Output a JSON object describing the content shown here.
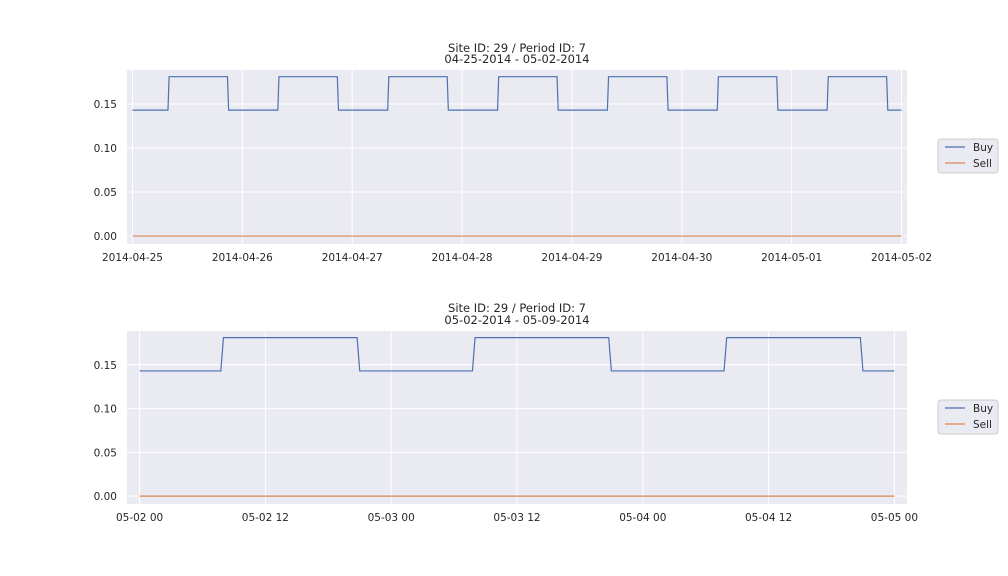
{
  "chart_data": [
    {
      "type": "line",
      "title": "Site ID: 29 / Period ID: 7",
      "subtitle": "04-25-2014 - 05-02-2014",
      "xlabel": "",
      "ylabel": "",
      "x_unit": "days",
      "xlim": [
        "2014-04-24 22:48",
        "2014-05-02 01:12"
      ],
      "ylim": [
        -0.009,
        0.1886
      ],
      "xticks": [
        {
          "label": "2014-04-25",
          "x": "2014-04-25 00:00"
        },
        {
          "label": "2014-04-26",
          "x": "2014-04-26 00:00"
        },
        {
          "label": "2014-04-27",
          "x": "2014-04-27 00:00"
        },
        {
          "label": "2014-04-28",
          "x": "2014-04-28 00:00"
        },
        {
          "label": "2014-04-29",
          "x": "2014-04-29 00:00"
        },
        {
          "label": "2014-04-30",
          "x": "2014-04-30 00:00"
        },
        {
          "label": "2014-05-01",
          "x": "2014-05-01 00:00"
        },
        {
          "label": "2014-05-02",
          "x": "2014-05-02 00:00"
        }
      ],
      "yticks": [
        {
          "label": "0.00",
          "y": 0.0
        },
        {
          "label": "0.05",
          "y": 0.05
        },
        {
          "label": "0.10",
          "y": 0.1
        },
        {
          "label": "0.15",
          "y": 0.15
        }
      ],
      "grid": true,
      "legend": "right",
      "series": [
        {
          "name": "Buy",
          "color": "#4c72b0",
          "step_values": [
            0.143,
            0.181
          ],
          "points": [
            [
              "2014-04-25 00:00",
              0.143
            ],
            [
              "2014-04-25 07:45",
              0.143
            ],
            [
              "2014-04-25 08:00",
              0.181
            ],
            [
              "2014-04-25 20:45",
              0.181
            ],
            [
              "2014-04-25 21:00",
              0.143
            ],
            [
              "2014-04-26 07:45",
              0.143
            ],
            [
              "2014-04-26 08:00",
              0.181
            ],
            [
              "2014-04-26 20:45",
              0.181
            ],
            [
              "2014-04-26 21:00",
              0.143
            ],
            [
              "2014-04-27 07:45",
              0.143
            ],
            [
              "2014-04-27 08:00",
              0.181
            ],
            [
              "2014-04-27 20:45",
              0.181
            ],
            [
              "2014-04-27 21:00",
              0.143
            ],
            [
              "2014-04-28 07:45",
              0.143
            ],
            [
              "2014-04-28 08:00",
              0.181
            ],
            [
              "2014-04-28 20:45",
              0.181
            ],
            [
              "2014-04-28 21:00",
              0.143
            ],
            [
              "2014-04-29 07:45",
              0.143
            ],
            [
              "2014-04-29 08:00",
              0.181
            ],
            [
              "2014-04-29 20:45",
              0.181
            ],
            [
              "2014-04-29 21:00",
              0.143
            ],
            [
              "2014-04-30 07:45",
              0.143
            ],
            [
              "2014-04-30 08:00",
              0.181
            ],
            [
              "2014-04-30 20:45",
              0.181
            ],
            [
              "2014-04-30 21:00",
              0.143
            ],
            [
              "2014-05-01 07:45",
              0.143
            ],
            [
              "2014-05-01 08:00",
              0.181
            ],
            [
              "2014-05-01 20:45",
              0.181
            ],
            [
              "2014-05-01 21:00",
              0.143
            ],
            [
              "2014-05-02 00:00",
              0.143
            ]
          ]
        },
        {
          "name": "Sell",
          "color": "#dd8452",
          "points": [
            [
              "2014-04-25 00:00",
              0.0
            ],
            [
              "2014-05-02 00:00",
              0.0
            ]
          ]
        }
      ]
    },
    {
      "type": "line",
      "title": "Site ID: 29 / Period ID: 7",
      "subtitle": "05-02-2014 - 05-09-2014",
      "xlabel": "",
      "ylabel": "",
      "x_unit": "hours",
      "xlim": [
        "2014-05-01 22:48",
        "2014-05-05 01:12"
      ],
      "ylim": [
        -0.009,
        0.1886
      ],
      "xticks": [
        {
          "label": "05-02 00",
          "x": "2014-05-02 00:00"
        },
        {
          "label": "05-02 12",
          "x": "2014-05-02 12:00"
        },
        {
          "label": "05-03 00",
          "x": "2014-05-03 00:00"
        },
        {
          "label": "05-03 12",
          "x": "2014-05-03 12:00"
        },
        {
          "label": "05-04 00",
          "x": "2014-05-04 00:00"
        },
        {
          "label": "05-04 12",
          "x": "2014-05-04 12:00"
        },
        {
          "label": "05-05 00",
          "x": "2014-05-05 00:00"
        }
      ],
      "yticks": [
        {
          "label": "0.00",
          "y": 0.0
        },
        {
          "label": "0.05",
          "y": 0.05
        },
        {
          "label": "0.10",
          "y": 0.1
        },
        {
          "label": "0.15",
          "y": 0.15
        }
      ],
      "grid": true,
      "legend": "right",
      "series": [
        {
          "name": "Buy",
          "color": "#4c72b0",
          "points": [
            [
              "2014-05-02 00:00",
              0.143
            ],
            [
              "2014-05-02 07:45",
              0.143
            ],
            [
              "2014-05-02 08:00",
              0.181
            ],
            [
              "2014-05-02 20:45",
              0.181
            ],
            [
              "2014-05-02 21:00",
              0.143
            ],
            [
              "2014-05-03 07:45",
              0.143
            ],
            [
              "2014-05-03 08:00",
              0.181
            ],
            [
              "2014-05-03 20:45",
              0.181
            ],
            [
              "2014-05-03 21:00",
              0.143
            ],
            [
              "2014-05-04 07:45",
              0.143
            ],
            [
              "2014-05-04 08:00",
              0.181
            ],
            [
              "2014-05-04 20:45",
              0.181
            ],
            [
              "2014-05-04 21:00",
              0.143
            ],
            [
              "2014-05-05 00:00",
              0.143
            ]
          ]
        },
        {
          "name": "Sell",
          "color": "#dd8452",
          "points": [
            [
              "2014-05-02 00:00",
              0.0
            ],
            [
              "2014-05-05 00:00",
              0.0
            ]
          ]
        }
      ]
    }
  ]
}
